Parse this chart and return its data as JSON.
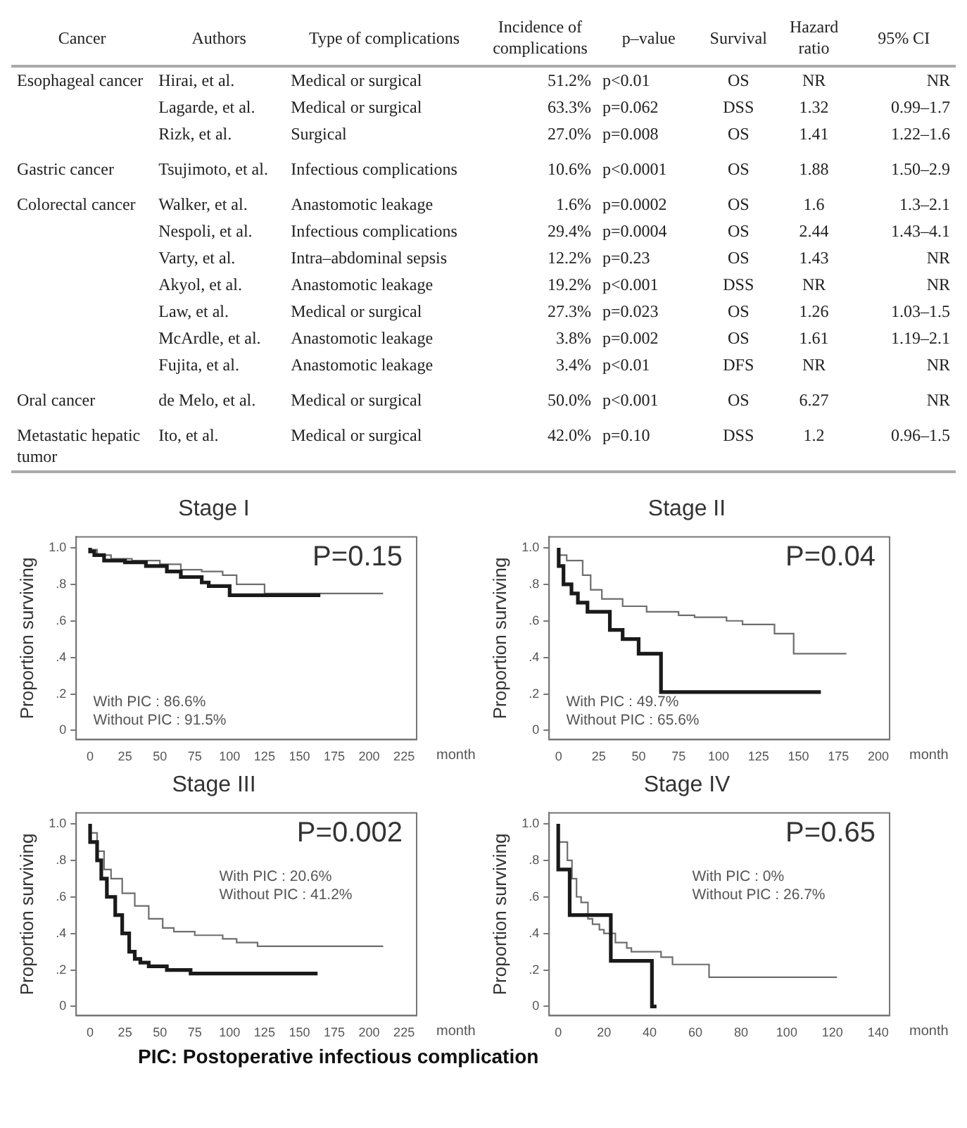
{
  "chart_data": [
    {
      "type": "other",
      "categories": [
        "Cancer",
        "Authors",
        "Type of complications",
        "Incidence of complications",
        "p–value",
        "Survival",
        "Hazard ratio",
        "95% CI"
      ],
      "cell_labels": [
        [
          "Esophageal cancer",
          "Hirai, et al.",
          "Medical or surgical",
          "51.2%",
          "p<0.01",
          "OS",
          "NR",
          "NR"
        ],
        [
          null,
          "Lagarde, et al.",
          "Medical or surgical",
          "63.3%",
          "p=0.062",
          "DSS",
          "1.32",
          "0.99–1.7"
        ],
        [
          null,
          "Rizk, et al.",
          "Surgical",
          "27.0%",
          "p=0.008",
          "OS",
          "1.41",
          "1.22–1.6"
        ],
        [
          "Gastric cancer",
          "Tsujimoto, et al.",
          "Infectious complications",
          "10.6%",
          "p<0.0001",
          "OS",
          "1.88",
          "1.50–2.9"
        ],
        [
          "Colorectal cancer",
          "Walker, et al.",
          "Anastomotic leakage",
          "1.6%",
          "p=0.0002",
          "OS",
          "1.6",
          "1.3–2.1"
        ],
        [
          null,
          "Nespoli, et al.",
          "Infectious complications",
          "29.4%",
          "p=0.0004",
          "OS",
          "2.44",
          "1.43–4.1"
        ],
        [
          null,
          "Varty, et al.",
          "Intra–abdominal sepsis",
          "12.2%",
          "p=0.23",
          "OS",
          "1.43",
          "NR"
        ],
        [
          null,
          "Akyol, et al.",
          "Anastomotic leakage",
          "19.2%",
          "p<0.001",
          "DSS",
          "NR",
          "NR"
        ],
        [
          null,
          "Law, et al.",
          "Medical or surgical",
          "27.3%",
          "p=0.023",
          "OS",
          "1.26",
          "1.03–1.5"
        ],
        [
          null,
          "McArdle, et al.",
          "Anastomotic leakage",
          "3.8%",
          "p=0.002",
          "OS",
          "1.61",
          "1.19–2.1"
        ],
        [
          null,
          "Fujita, et al.",
          "Anastomotic leakage",
          "3.4%",
          "p<0.01",
          "DFS",
          "NR",
          "NR"
        ],
        [
          "Oral cancer",
          "de Melo, et al.",
          "Medical or surgical",
          "50.0%",
          "p<0.001",
          "OS",
          "6.27",
          "NR"
        ],
        [
          "Metastatic hepatic tumor",
          "Ito, et al.",
          "Medical or surgical",
          "42.0%",
          "p=0.10",
          "DSS",
          "1.2",
          "0.96–1.5"
        ]
      ]
    },
    {
      "type": "step",
      "title": "Stage I",
      "xlabel": "month",
      "ylabel": "Proportion surviving",
      "xlim": [
        -10,
        234
      ],
      "xticks": [
        0,
        25,
        50,
        75,
        100,
        125,
        150,
        175,
        200,
        225
      ],
      "ylim": [
        -0.05,
        1.06
      ],
      "yticks": [
        {
          "value": 0,
          "label": "0"
        },
        {
          "value": 0.2,
          "label": ".2"
        },
        {
          "value": 0.4,
          "label": ".4"
        },
        {
          "value": 0.6,
          "label": ".6"
        },
        {
          "value": 0.8,
          "label": ".8"
        },
        {
          "value": 1,
          "label": "1.0"
        }
      ],
      "grid": false,
      "legend": false,
      "annotations": [
        "P=0.15",
        "With PIC : 86.6%",
        "Without PIC : 91.5%"
      ],
      "series": [
        {
          "color": "#1a1a1a",
          "x": [
            0,
            3,
            10,
            25,
            40,
            55,
            65,
            80,
            85,
            100,
            140,
            165
          ],
          "values": [
            1.0,
            0.98,
            0.96,
            0.93,
            0.92,
            0.9,
            0.87,
            0.84,
            0.81,
            0.79,
            0.74,
            0.74
          ]
        },
        {
          "color": "#6e6e6e",
          "x": [
            0,
            5,
            15,
            30,
            50,
            65,
            80,
            95,
            105,
            125,
            150,
            210
          ],
          "values": [
            1.0,
            0.99,
            0.96,
            0.94,
            0.93,
            0.91,
            0.88,
            0.87,
            0.85,
            0.8,
            0.75,
            0.75
          ]
        }
      ]
    },
    {
      "type": "step",
      "title": "Stage II",
      "xlabel": "month",
      "ylabel": "Proportion surviving",
      "xlim": [
        -6,
        207
      ],
      "xticks": [
        0,
        25,
        50,
        75,
        100,
        125,
        150,
        175,
        200
      ],
      "ylim": [
        -0.05,
        1.06
      ],
      "yticks": [
        {
          "value": 0,
          "label": "0"
        },
        {
          "value": 0.2,
          "label": ".2"
        },
        {
          "value": 0.4,
          "label": ".4"
        },
        {
          "value": 0.6,
          "label": ".6"
        },
        {
          "value": 0.8,
          "label": ".8"
        },
        {
          "value": 1,
          "label": "1.0"
        }
      ],
      "grid": false,
      "legend": false,
      "annotations": [
        "P=0.04",
        "With PIC : 49.7%",
        "Without PIC : 65.6%"
      ],
      "series": [
        {
          "color": "#1a1a1a",
          "x": [
            0,
            3,
            8,
            12,
            18,
            32,
            40,
            50,
            64,
            130,
            164
          ],
          "values": [
            1.0,
            0.9,
            0.8,
            0.75,
            0.7,
            0.65,
            0.55,
            0.5,
            0.42,
            0.21,
            0.21
          ]
        },
        {
          "color": "#6e6e6e",
          "x": [
            0,
            5,
            15,
            20,
            27,
            40,
            55,
            75,
            85,
            105,
            115,
            135,
            147,
            162,
            180
          ],
          "values": [
            1.0,
            0.96,
            0.93,
            0.85,
            0.77,
            0.72,
            0.68,
            0.65,
            0.63,
            0.62,
            0.6,
            0.58,
            0.53,
            0.42,
            0.42
          ]
        }
      ]
    },
    {
      "type": "step",
      "title": "Stage III",
      "xlabel": "month",
      "ylabel": "Proportion surviving",
      "xlim": [
        -10,
        234
      ],
      "xticks": [
        0,
        25,
        50,
        75,
        100,
        125,
        150,
        175,
        200,
        225
      ],
      "ylim": [
        -0.05,
        1.06
      ],
      "yticks": [
        {
          "value": 0,
          "label": "0"
        },
        {
          "value": 0.2,
          "label": ".2"
        },
        {
          "value": 0.4,
          "label": ".4"
        },
        {
          "value": 0.6,
          "label": ".6"
        },
        {
          "value": 0.8,
          "label": ".8"
        },
        {
          "value": 1,
          "label": "1.0"
        }
      ],
      "grid": false,
      "legend": false,
      "annotations": [
        "P=0.002",
        "With PIC : 20.6%",
        "Without PIC : 41.2%"
      ],
      "series": [
        {
          "color": "#1a1a1a",
          "x": [
            0,
            5,
            8,
            12,
            18,
            23,
            28,
            32,
            36,
            42,
            55,
            72,
            80,
            163
          ],
          "values": [
            1.0,
            0.9,
            0.8,
            0.7,
            0.6,
            0.5,
            0.4,
            0.3,
            0.26,
            0.24,
            0.22,
            0.2,
            0.18,
            0.18
          ]
        },
        {
          "color": "#6e6e6e",
          "x": [
            0,
            5,
            10,
            15,
            23,
            32,
            42,
            52,
            60,
            75,
            95,
            105,
            120,
            128,
            210
          ],
          "values": [
            1.0,
            0.95,
            0.85,
            0.75,
            0.7,
            0.62,
            0.55,
            0.48,
            0.43,
            0.41,
            0.39,
            0.37,
            0.35,
            0.33,
            0.33
          ]
        }
      ]
    },
    {
      "type": "step",
      "title": "Stage IV",
      "xlabel": "month",
      "ylabel": "Proportion surviving",
      "xlim": [
        -4,
        145
      ],
      "xticks": [
        0,
        20,
        40,
        60,
        80,
        100,
        120,
        140
      ],
      "ylim": [
        -0.05,
        1.06
      ],
      "yticks": [
        {
          "value": 0,
          "label": "0"
        },
        {
          "value": 0.2,
          "label": ".2"
        },
        {
          "value": 0.4,
          "label": ".4"
        },
        {
          "value": 0.6,
          "label": ".6"
        },
        {
          "value": 0.8,
          "label": ".8"
        },
        {
          "value": 1,
          "label": "1.0"
        }
      ],
      "grid": false,
      "legend": false,
      "annotations": [
        "P=0.65",
        "With PIC : 0%",
        "Without PIC : 26.7%"
      ],
      "series": [
        {
          "color": "#1a1a1a",
          "x": [
            0,
            5,
            23,
            41,
            43
          ],
          "values": [
            1.0,
            0.75,
            0.5,
            0.25,
            0
          ]
        },
        {
          "color": "#6e6e6e",
          "x": [
            0,
            4,
            6,
            8,
            10,
            13,
            15,
            18,
            20,
            25,
            30,
            32,
            45,
            50,
            66,
            88,
            122
          ],
          "values": [
            1.0,
            0.9,
            0.8,
            0.7,
            0.6,
            0.57,
            0.48,
            0.45,
            0.42,
            0.4,
            0.35,
            0.32,
            0.3,
            0.27,
            0.23,
            0.16,
            0.16
          ]
        }
      ]
    },
    {
      "type": "other",
      "annotations": [
        "PIC: Postoperative infectious complication"
      ]
    }
  ]
}
